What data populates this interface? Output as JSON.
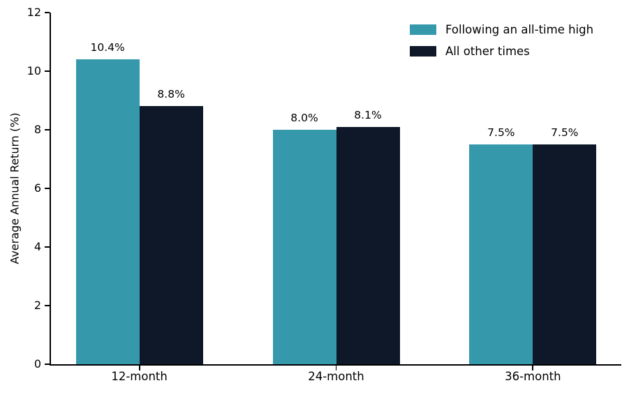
{
  "chart_data": {
    "type": "bar",
    "title": "",
    "xlabel": "",
    "ylabel": "Average Annual Return (%)",
    "ylim": [
      0,
      12
    ],
    "yticks": [
      0,
      2,
      4,
      6,
      8,
      10,
      12
    ],
    "categories": [
      "12-month",
      "24-month",
      "36-month"
    ],
    "series": [
      {
        "name": "Following an all-time high",
        "color": "#3599AB",
        "values": [
          10.4,
          8.0,
          7.5
        ],
        "labels": [
          "10.4%",
          "8.0%",
          "7.5%"
        ]
      },
      {
        "name": "All other times",
        "color": "#0E1828",
        "values": [
          8.8,
          8.1,
          7.5
        ],
        "labels": [
          "8.8%",
          "8.1%",
          "7.5%"
        ]
      }
    ],
    "legend_position": "upper right",
    "grid": false,
    "axis_color": "#000000",
    "background_color": "#ffffff"
  }
}
